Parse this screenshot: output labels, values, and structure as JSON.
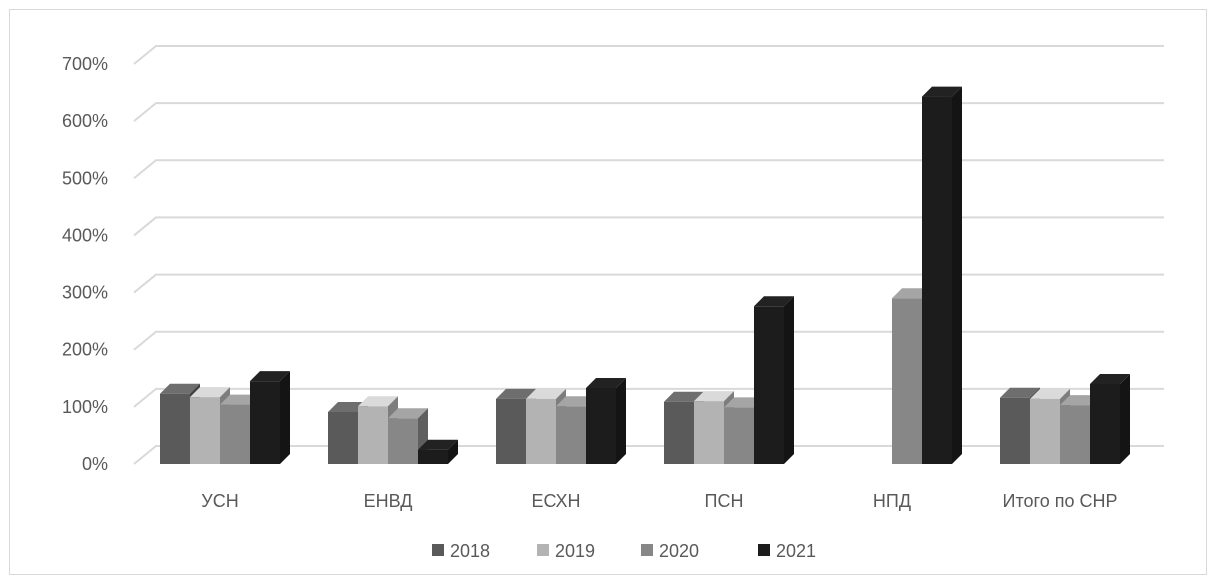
{
  "chart_data": {
    "type": "bar",
    "title": "",
    "xlabel": "",
    "ylabel": "",
    "categories": [
      "УСН",
      "ЕНВД",
      "ЕСХН",
      "ПСН",
      "НПД",
      "Итого по СНР"
    ],
    "series": [
      {
        "name": "2018",
        "color": "#5a5a5a",
        "values": [
          123,
          91,
          114,
          109,
          null,
          116
        ]
      },
      {
        "name": "2019",
        "color": "#b3b3b3",
        "values": [
          117,
          101,
          114,
          110,
          null,
          114
        ]
      },
      {
        "name": "2020",
        "color": "#878787",
        "values": [
          104,
          80,
          101,
          99,
          290,
          103
        ]
      },
      {
        "name": "2021",
        "color": "#1c1c1c",
        "values": [
          145,
          25,
          133,
          276,
          643,
          140
        ]
      }
    ],
    "y_ticks": [
      "0%",
      "100%",
      "200%",
      "300%",
      "400%",
      "500%",
      "600%",
      "700%"
    ],
    "ylim": [
      0,
      700
    ],
    "grid": true,
    "legend_position": "bottom",
    "style": "3d-clustered-column"
  }
}
